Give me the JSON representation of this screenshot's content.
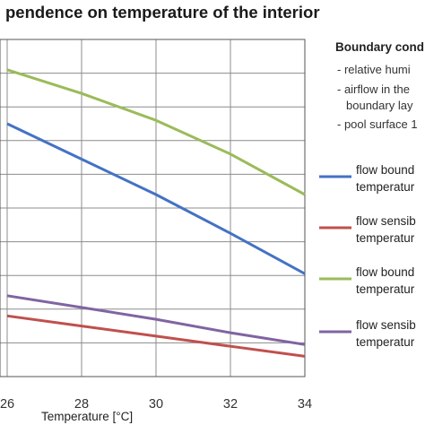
{
  "chart_data": {
    "type": "line",
    "title": "pendence on temperature of the interior",
    "xlabel": "Temperature [°C]",
    "ylabel": "",
    "x": [
      26,
      28,
      30,
      32,
      34
    ],
    "xlim": [
      26,
      34
    ],
    "ylim": [
      0,
      10
    ],
    "grid": true,
    "series": [
      {
        "name": "flow bound temperatur",
        "color": "#4472c4",
        "x": [
          26,
          28,
          30,
          32,
          34
        ],
        "values": [
          7.5,
          6.45,
          5.4,
          4.25,
          3.05
        ]
      },
      {
        "name": "flow sensib temperatur",
        "color": "#c0504d",
        "x": [
          26,
          28,
          30,
          32,
          34
        ],
        "values": [
          1.8,
          1.5,
          1.2,
          0.9,
          0.6
        ]
      },
      {
        "name": "flow bound temperatur",
        "color": "#9bbb59",
        "x": [
          26,
          28,
          30,
          32,
          34
        ],
        "values": [
          9.1,
          8.4,
          7.6,
          6.6,
          5.4
        ]
      },
      {
        "name": "flow sensib temperatur",
        "color": "#8064a2",
        "x": [
          26,
          28,
          30,
          32,
          34
        ],
        "values": [
          2.4,
          2.05,
          1.7,
          1.3,
          0.95
        ]
      }
    ],
    "legend_position": "right",
    "boundary_conditions": {
      "title": "Boundary cond",
      "lines": [
        "- relative humi",
        "- airflow in the",
        "boundary lay",
        "- pool surface 1"
      ]
    }
  }
}
